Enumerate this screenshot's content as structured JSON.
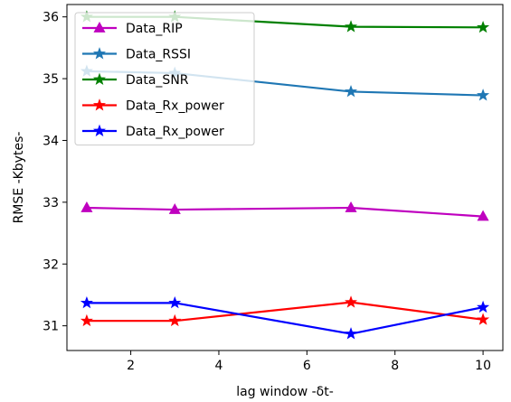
{
  "chart_data": {
    "type": "line",
    "title": "",
    "xlabel": "lag window -δt-",
    "ylabel": "RMSE -Kbytes-",
    "xlim": [
      0.55,
      10.45
    ],
    "ylim": [
      30.6,
      36.2
    ],
    "xticks": [
      2,
      4,
      6,
      8,
      10
    ],
    "yticks": [
      31,
      32,
      33,
      34,
      35,
      36
    ],
    "grid": false,
    "legend_position": "top-left",
    "x": [
      1,
      3,
      7,
      10
    ],
    "series": [
      {
        "name": "Data_RIP",
        "color": "#bf00bf",
        "marker": "triangle",
        "values": [
          32.91,
          32.88,
          32.91,
          32.77
        ]
      },
      {
        "name": "Data_RSSI",
        "color": "#1f77b4",
        "marker": "star",
        "values": [
          35.12,
          35.09,
          34.79,
          34.73
        ]
      },
      {
        "name": "Data_SNR",
        "color": "#008000",
        "marker": "star",
        "values": [
          36.0,
          36.0,
          35.84,
          35.83
        ]
      },
      {
        "name": "Data_Rx_power",
        "color": "#ff0000",
        "marker": "star",
        "values": [
          31.08,
          31.08,
          31.38,
          31.1
        ]
      },
      {
        "name": "Data_Rx_power",
        "color": "#0000ff",
        "marker": "star",
        "values": [
          31.37,
          31.37,
          30.87,
          31.3
        ]
      }
    ]
  }
}
